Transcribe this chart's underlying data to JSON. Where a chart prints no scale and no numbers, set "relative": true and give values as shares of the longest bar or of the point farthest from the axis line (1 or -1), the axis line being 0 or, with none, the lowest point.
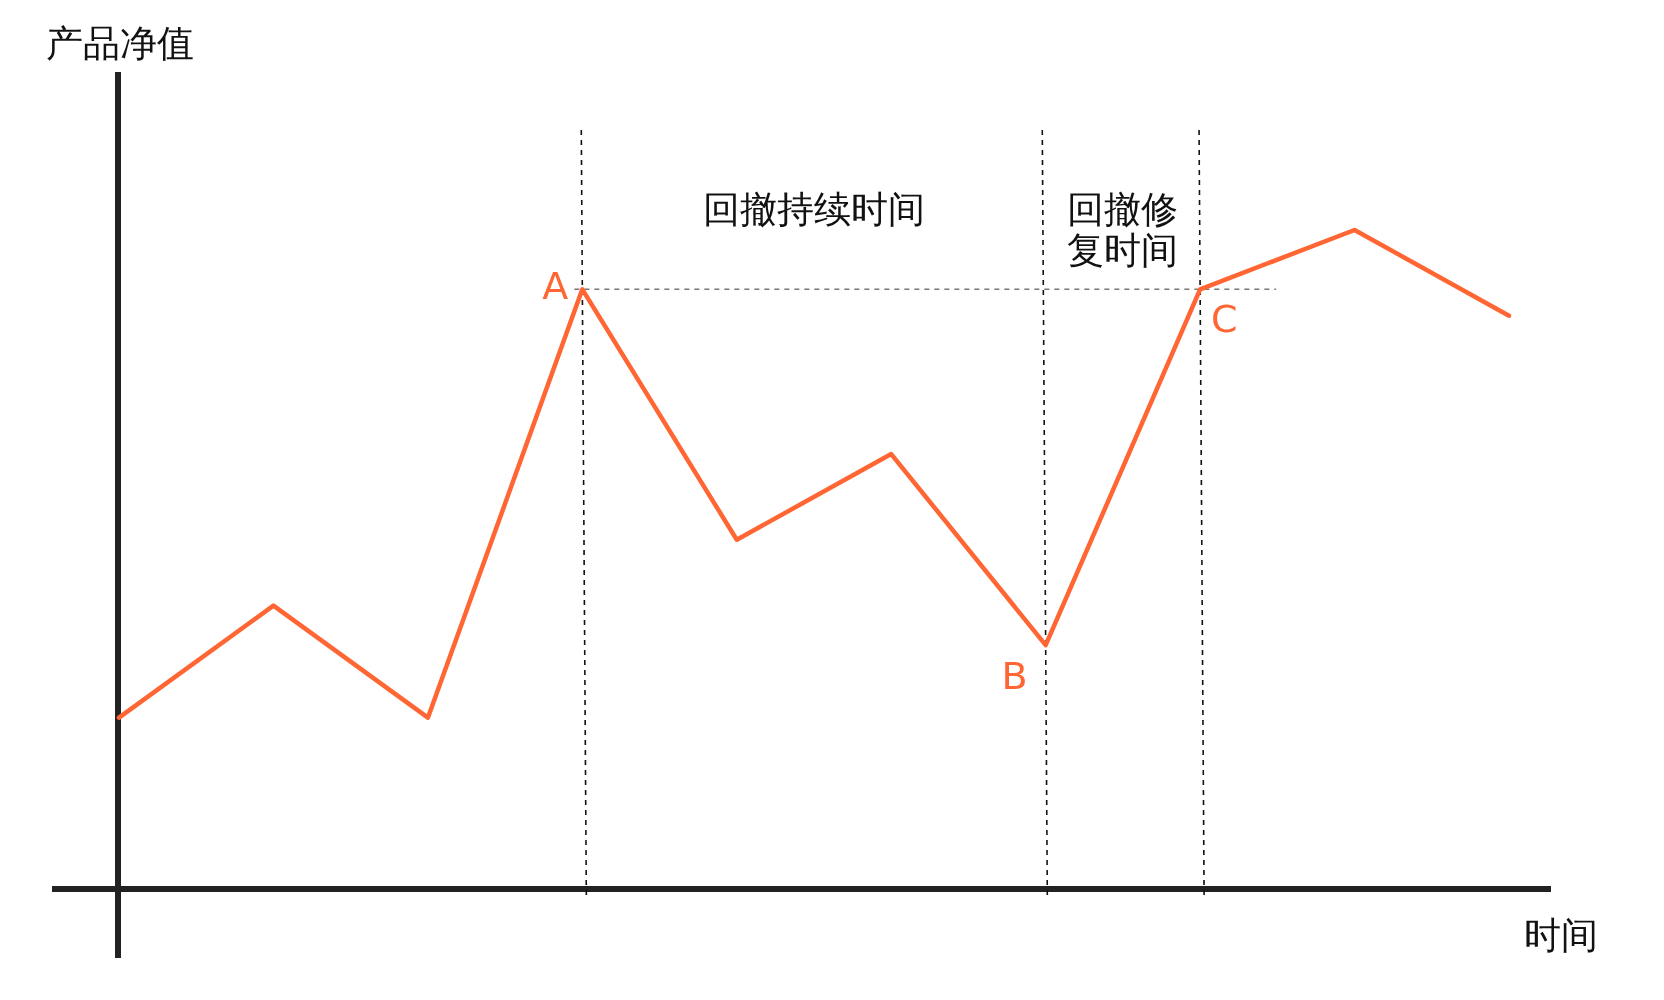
{
  "chart_data": {
    "type": "line",
    "relative": true,
    "ylabel": "产品净值",
    "xlabel": "时间",
    "categories": [
      null,
      null,
      null,
      null,
      null,
      null,
      null,
      null,
      null,
      null
    ],
    "series": [
      {
        "color": "#ff6633",
        "values": [
          0.26,
          0.43,
          0.26,
          0.91,
          0.53,
          0.66,
          0.37,
          0.91,
          1,
          0.87
        ]
      }
    ],
    "ref_lines": [
      {
        "axis": "y",
        "value": 0.91,
        "color": "#777777",
        "line_style": "dashed"
      }
    ],
    "annotations": [
      "A",
      "B",
      "C",
      "回撤持续时间",
      "回撤修复时间"
    ]
  }
}
